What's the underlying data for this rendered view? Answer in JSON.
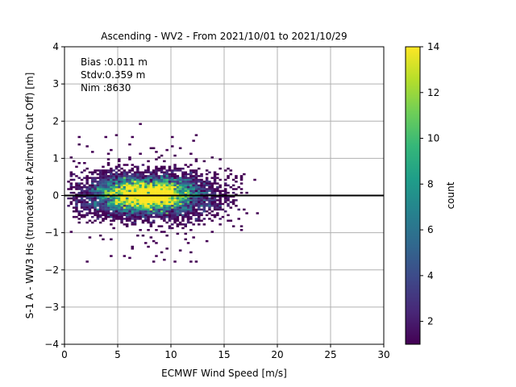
{
  "chart_data": {
    "type": "heatmap",
    "title": "Ascending - WV2 - From 2021/10/01 to 2021/10/29",
    "xlabel": "ECMWF Wind Speed [m/s]",
    "ylabel": "S-1 A - WW3 Hs (truncated at Azimuth Cut Off) [m]",
    "xlim": [
      0,
      30
    ],
    "ylim": [
      -4,
      4
    ],
    "xticks": [
      0,
      5,
      10,
      15,
      20,
      25,
      30
    ],
    "yticks": [
      -4,
      -3,
      -2,
      -1,
      0,
      1,
      2,
      3,
      4
    ],
    "grid": true,
    "reference_line_y": 0,
    "stats": [
      "Bias :0.011 m",
      "Stdv:0.359 m",
      "Nim :8630"
    ],
    "colorbar": {
      "label": "count",
      "range": [
        1,
        14
      ],
      "ticks": [
        2,
        4,
        6,
        8,
        10,
        12,
        14
      ],
      "colormap": "viridis"
    },
    "distribution": {
      "n_samples": 8630,
      "wind_speed_mode": 7.5,
      "wind_speed_range": [
        0.3,
        21.5
      ],
      "hs_diff_mean": 0.011,
      "hs_diff_std": 0.359,
      "hs_diff_range": [
        -1.8,
        2.05
      ],
      "bin_width_x": 0.25,
      "bin_width_y": 0.05
    }
  },
  "colors": {
    "viridis": [
      "#440154",
      "#482878",
      "#3e4989",
      "#31688e",
      "#26828e",
      "#1f9e89",
      "#35b779",
      "#6ece58",
      "#b5de2b",
      "#fde725"
    ],
    "grid": "#b0b0b0",
    "zero_line": "#000000"
  }
}
